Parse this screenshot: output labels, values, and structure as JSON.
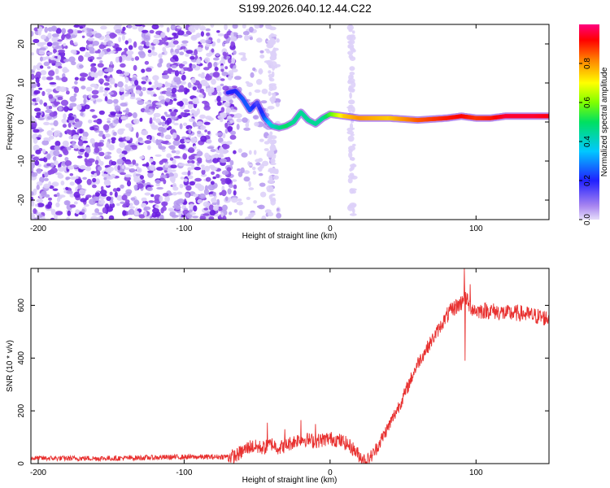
{
  "title": "S199.2026.040.12.44.C22",
  "colors": {
    "ridge_low": "#c9b4f5",
    "ridge_mid": "#7a2ad8",
    "snr_line": "#e8302f",
    "axis": "#000000"
  },
  "chart_data": [
    {
      "type": "heatmap",
      "xlabel": "Height of straight line (km)",
      "ylabel": "Frequency (Hz)",
      "xlim": [
        -205,
        150
      ],
      "ylim": [
        -25,
        25
      ],
      "xticks": [
        -200,
        -100,
        0,
        100
      ],
      "yticks": [
        -20,
        -10,
        0,
        10,
        20
      ],
      "ridge": {
        "x": [
          -70,
          -65,
          -60,
          -55,
          -50,
          -45,
          -40,
          -35,
          -30,
          -25,
          -20,
          -15,
          -10,
          -5,
          0,
          10,
          20,
          40,
          60,
          80,
          90,
          100,
          110,
          120,
          140,
          150
        ],
        "freq": [
          7.5,
          8,
          6,
          3,
          5,
          1,
          -1,
          -1.5,
          -1,
          0,
          2.5,
          0.5,
          -0.5,
          1,
          2,
          1.5,
          1,
          1,
          0.5,
          1,
          1.5,
          1,
          1,
          1.5,
          1.5,
          1.5
        ],
        "amplitude": [
          0.2,
          0.2,
          0.25,
          0.25,
          0.15,
          0.25,
          0.4,
          0.45,
          0.5,
          0.45,
          0.45,
          0.45,
          0.45,
          0.45,
          0.55,
          0.75,
          0.8,
          0.75,
          0.85,
          0.9,
          0.92,
          0.88,
          0.9,
          0.95,
          0.95,
          0.93
        ]
      }
    },
    {
      "type": "colorbar",
      "label": "Normalized spectral amplitude",
      "ticks": [
        "0.0",
        "0.2",
        "0.4",
        "0.6",
        "0.8"
      ],
      "range": [
        0,
        1
      ]
    },
    {
      "type": "line",
      "xlabel": "Height of straight line (km)",
      "ylabel": "SNR (10 * v/v)",
      "xlim": [
        -205,
        150
      ],
      "ylim": [
        0,
        740
      ],
      "xticks": [
        -200,
        -100,
        0,
        100
      ],
      "yticks": [
        0,
        200,
        400,
        600
      ],
      "x": [
        -205,
        -150,
        -100,
        -80,
        -65,
        -55,
        -45,
        -40,
        -35,
        -30,
        -20,
        -10,
        0,
        5,
        10,
        15,
        20,
        25,
        30,
        40,
        50,
        60,
        70,
        80,
        85,
        90,
        92,
        95,
        100,
        110,
        120,
        130,
        140,
        150
      ],
      "snr": [
        20,
        20,
        25,
        25,
        28,
        65,
        60,
        75,
        60,
        70,
        95,
        85,
        95,
        90,
        80,
        60,
        30,
        10,
        40,
        140,
        250,
        380,
        470,
        560,
        590,
        610,
        650,
        600,
        580,
        580,
        570,
        570,
        560,
        550
      ],
      "spikes": [
        {
          "x": -43,
          "y": 155
        },
        {
          "x": -31,
          "y": 130
        },
        {
          "x": -20,
          "y": 165
        },
        {
          "x": -10,
          "y": 150
        },
        {
          "x": 92,
          "y": 740
        },
        {
          "x": 92.5,
          "y": 390
        },
        {
          "x": 96,
          "y": 680
        }
      ]
    }
  ]
}
